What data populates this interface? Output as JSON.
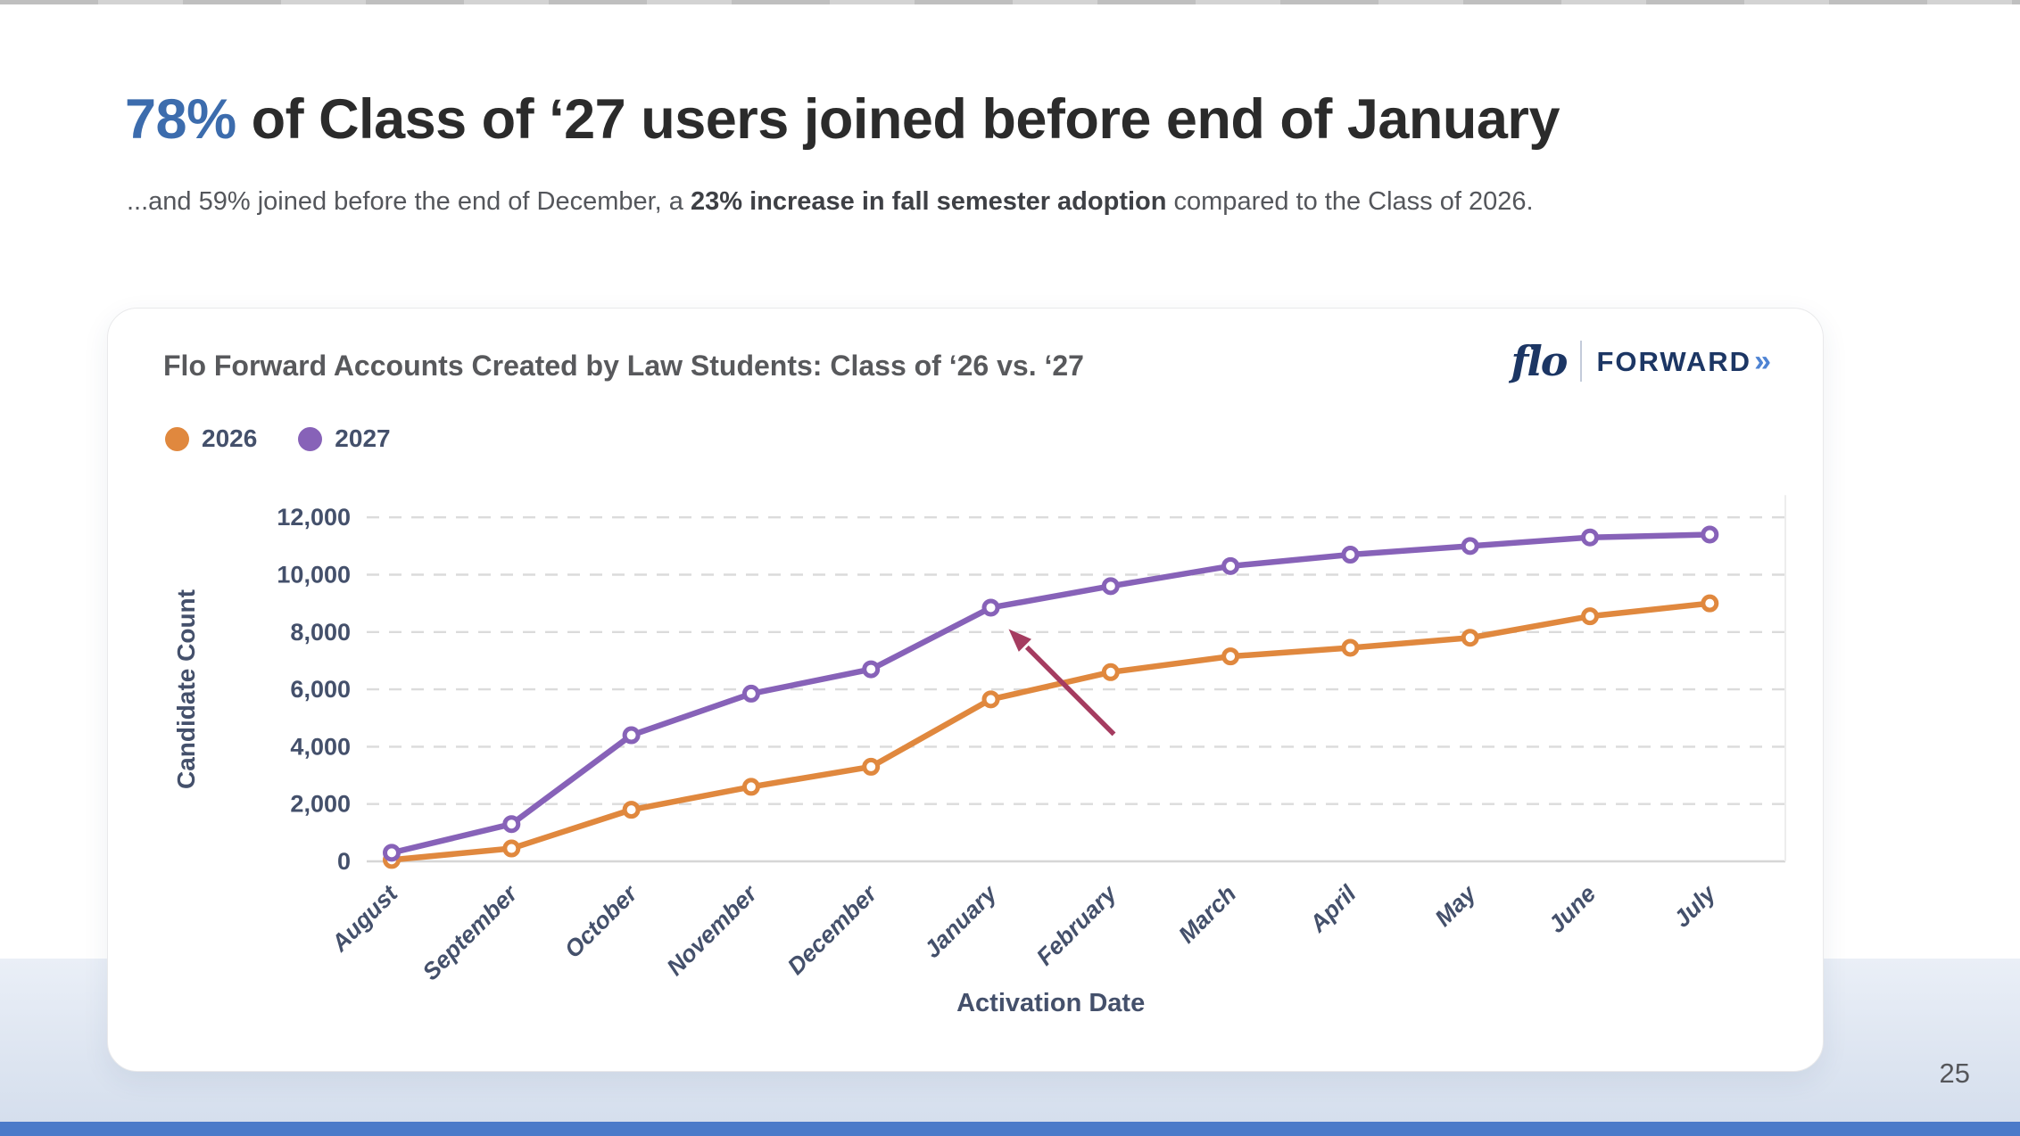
{
  "heading": {
    "highlight": "78%",
    "highlight_color": "#3c6cad",
    "rest": " of Class of ‘27 users joined before end of January"
  },
  "subtitle": {
    "pre": "...and 59% joined before the end of December, a ",
    "bold": "23% increase in fall semester adoption",
    "post": " compared to the Class of 2026."
  },
  "card": {
    "title": "Flo Forward Accounts Created by Law Students: Class of ‘26 vs. ‘27",
    "logo": {
      "script": "flo",
      "word": "FORWARD",
      "chevrons": "»"
    }
  },
  "page_number": "25",
  "chart_data": {
    "type": "line",
    "title": "Flo Forward Accounts Created by Law Students: Class of ‘26 vs. ‘27",
    "x": [
      "August",
      "September",
      "October",
      "November",
      "December",
      "January",
      "February",
      "March",
      "April",
      "May",
      "June",
      "July"
    ],
    "series": [
      {
        "name": "2026",
        "color": "#e0883e",
        "values": [
          50,
          450,
          1800,
          2600,
          3300,
          5650,
          6600,
          7150,
          7450,
          7800,
          8550,
          9000
        ]
      },
      {
        "name": "2027",
        "color": "#8762b8",
        "values": [
          300,
          1300,
          4400,
          5850,
          6700,
          8850,
          9600,
          10300,
          10700,
          11000,
          11300,
          11400
        ]
      }
    ],
    "xlabel": "Activation Date",
    "ylabel": "Candidate Count",
    "ylim": [
      0,
      12000
    ],
    "yticks": [
      0,
      2000,
      4000,
      6000,
      8000,
      10000,
      12000
    ],
    "grid": "horizontal-dashed",
    "legend_position": "top-left",
    "annotation": {
      "type": "arrow",
      "color": "#a53c60",
      "points_at_series": "2027",
      "points_at_x": "January"
    },
    "style": {
      "grid_color": "#dbdbdb",
      "axis_line_color": "#d6d6d6",
      "right_edge_color": "#ededed",
      "label_color": "#44506b"
    }
  }
}
